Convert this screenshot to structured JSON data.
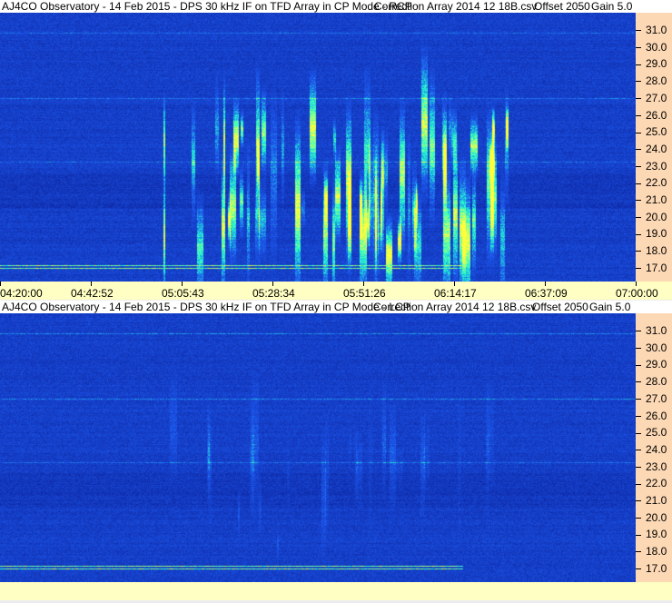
{
  "panels": [
    {
      "title": "AJ4CO Observatory - 14 Feb 2015 - DPS 30 kHz IF on TFD Array in CP Mode - RCP",
      "correction": "Correction Array 2014 12 18B.csv",
      "offset": "Offset 2050",
      "gain": "Gain 5.0",
      "activity": 1.0
    },
    {
      "title": "AJ4CO Observatory - 14 Feb 2015 - DPS 30 kHz IF on TFD Array in CP Mode - LCP",
      "correction": "Correction Array 2014 12 18B.csv",
      "offset": "Offset 2050",
      "gain": "Gain 5.0",
      "activity": 0.25
    }
  ],
  "freq_ticks": [
    "31.0",
    "30.0",
    "29.0",
    "28.0",
    "27.0",
    "26.0",
    "25.0",
    "24.0",
    "23.0",
    "22.0",
    "21.0",
    "20.0",
    "19.0",
    "18.0",
    "17.0"
  ],
  "time_ticks": [
    "04:20:00",
    "04:42:52",
    "05:05:43",
    "05:28:34",
    "05:51:26",
    "06:14:17",
    "06:37:09",
    "07:00:00"
  ],
  "colors": {
    "background": "#1a3ccc",
    "axis": "#fcd8b4",
    "time_strip": "#ffffc4"
  }
}
